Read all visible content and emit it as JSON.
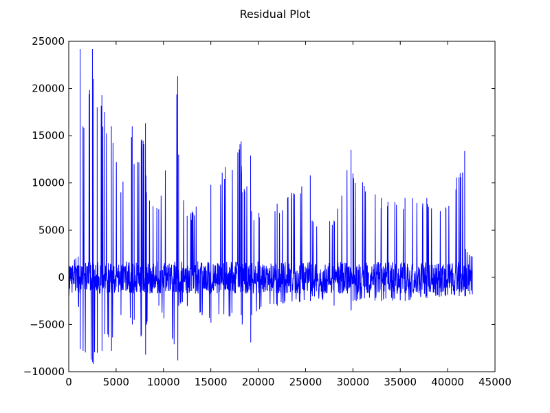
{
  "chart_data": {
    "type": "line",
    "title": "Residual Plot",
    "xlabel": "",
    "ylabel": "",
    "xlim": [
      0,
      45000
    ],
    "ylim": [
      -10000,
      25000
    ],
    "xticks": [
      0,
      5000,
      10000,
      15000,
      20000,
      25000,
      30000,
      35000,
      40000,
      45000
    ],
    "yticks": [
      -10000,
      -5000,
      0,
      5000,
      10000,
      15000,
      20000,
      25000
    ],
    "grid": false,
    "line_color": "#0000ff",
    "series": [
      {
        "x_start": 0,
        "x_end": 42600,
        "envelope_x": [
          0,
          1000,
          1200,
          1500,
          2500,
          2600,
          3000,
          3500,
          3800,
          4500,
          5500,
          6700,
          6900,
          8100,
          8200,
          9500,
          11500,
          11600,
          12500,
          15000,
          18200,
          18300,
          19200,
          19300,
          22000,
          25500,
          25700,
          28000,
          29800,
          30000,
          33000,
          35500,
          37800,
          39800,
          41800,
          41900,
          42600
        ],
        "envelope_upper": [
          2000,
          2200,
          24200,
          16000,
          24200,
          21000,
          18000,
          19300,
          17500,
          16000,
          9000,
          16000,
          12000,
          16300,
          9000,
          7200,
          21300,
          13000,
          6500,
          9800,
          14400,
          9000,
          12900,
          7000,
          7800,
          10800,
          6000,
          6000,
          13500,
          11000,
          8400,
          8400,
          8400,
          7400,
          13400,
          3000,
          2200
        ],
        "envelope_lower": [
          -2000,
          -2200,
          -7600,
          -7800,
          -9000,
          -9200,
          -8000,
          -7800,
          -6000,
          -7800,
          -4000,
          -5000,
          -4500,
          -8200,
          -5000,
          -3000,
          -8800,
          -3000,
          -3000,
          -4800,
          -4000,
          -5000,
          -6900,
          -4000,
          -3000,
          -2500,
          -2000,
          -3000,
          -3500,
          -2500,
          -2500,
          -2500,
          -2200,
          -2000,
          -2000,
          -2000,
          -1800
        ]
      }
    ]
  }
}
